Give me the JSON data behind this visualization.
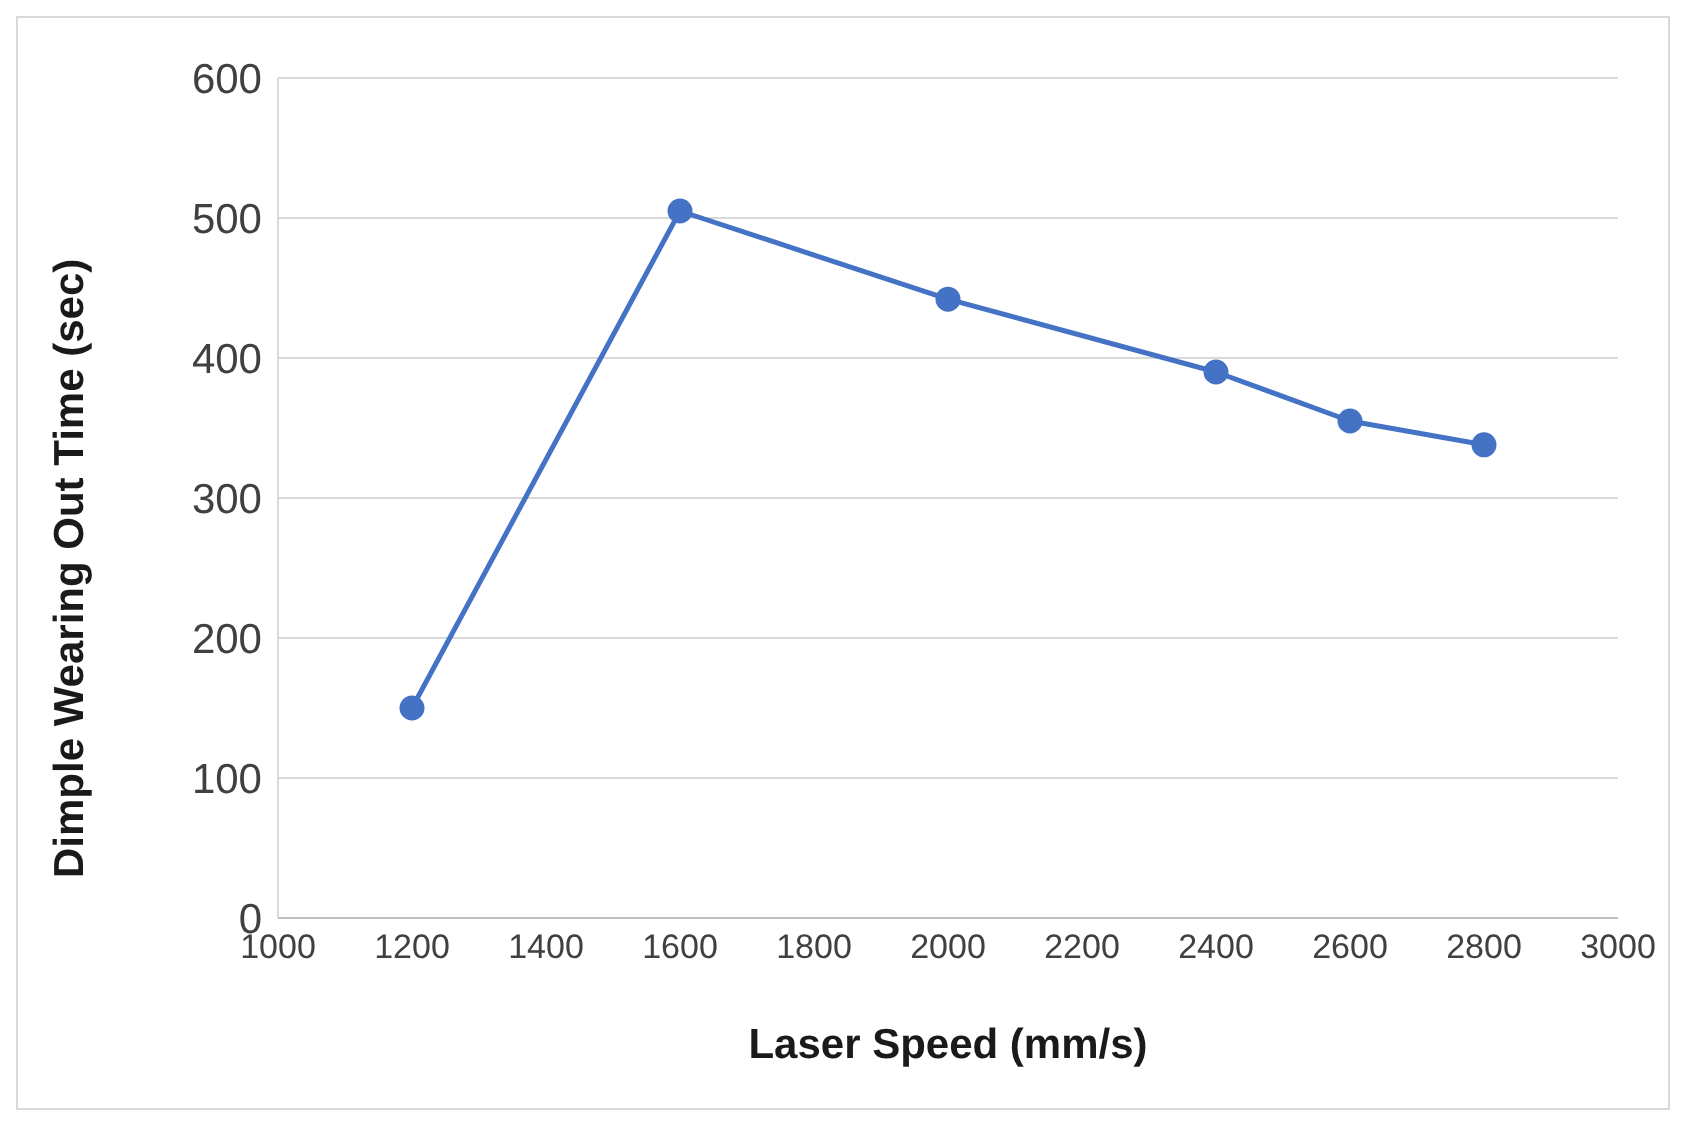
{
  "chart_data": {
    "type": "line",
    "xlabel": "Laser Speed (mm/s)",
    "ylabel": "Dimple Wearing Out Time (sec)",
    "x": [
      1200,
      1600,
      2000,
      2400,
      2600,
      2800
    ],
    "series": [
      {
        "color": "#4472c4",
        "values": [
          150,
          505,
          442,
          390,
          355,
          338
        ]
      }
    ],
    "xlim": [
      1000,
      3000
    ],
    "xticks": [
      1000,
      1200,
      1400,
      1600,
      1800,
      2000,
      2200,
      2400,
      2600,
      2800,
      3000
    ],
    "ylim": [
      0,
      600
    ],
    "yticks": [
      0,
      100,
      200,
      300,
      400,
      500,
      600
    ],
    "grid": "y",
    "legend": false,
    "marker": "circle",
    "line_style": "solid"
  }
}
